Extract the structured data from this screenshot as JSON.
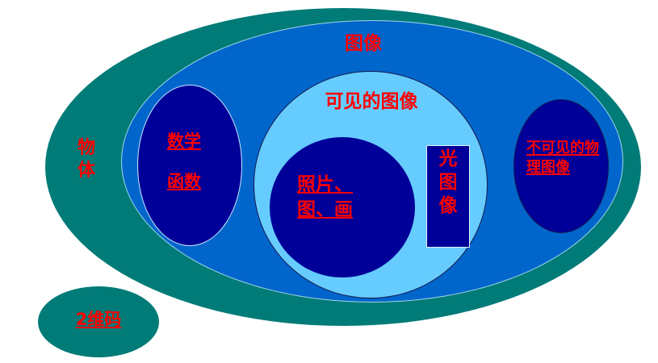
{
  "diagram": {
    "outer_label_top": "图像",
    "outer_label_left_line1": "物",
    "outer_label_left_line2": "体",
    "math_label_line1": "数学",
    "math_label_line2": "函数",
    "visible_label": "可见的图像",
    "photo_label_line1": "照片、",
    "photo_label_line2": "图、画",
    "optical_line1": "光",
    "optical_line2": "图",
    "optical_line3": "像",
    "invisible_label_line1": "不可见的物",
    "invisible_label_line2": "理图像",
    "code_label": "2维码"
  },
  "colors": {
    "teal": "#007b78",
    "blue": "#0066cc",
    "light_blue": "#66ccff",
    "navy": "#000099",
    "red": "#ff0000"
  }
}
